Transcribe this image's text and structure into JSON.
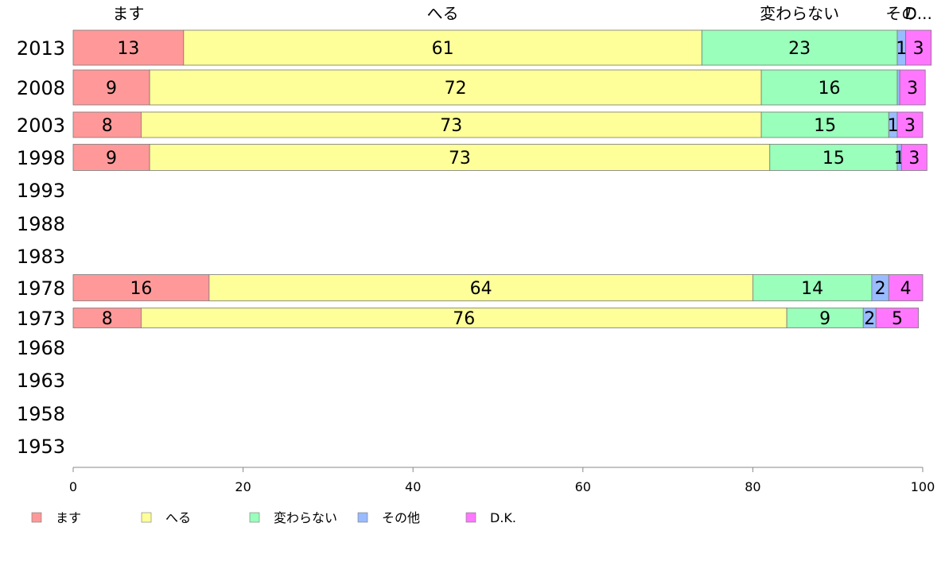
{
  "chart_data": {
    "type": "bar",
    "orientation": "horizontal",
    "stacked": true,
    "categories": [
      "2013",
      "2008",
      "2003",
      "1998",
      "1993",
      "1988",
      "1983",
      "1978",
      "1973",
      "1968",
      "1963",
      "1958",
      "1953"
    ],
    "series": [
      {
        "name": "ます",
        "color": "#ff9999",
        "values": [
          13,
          9,
          8,
          9,
          null,
          null,
          null,
          16,
          8,
          null,
          null,
          null,
          null
        ]
      },
      {
        "name": "へる",
        "color": "#ffff99",
        "values": [
          61,
          72,
          73,
          73,
          null,
          null,
          null,
          64,
          76,
          null,
          null,
          null,
          null
        ]
      },
      {
        "name": "変わらない",
        "color": "#99ffbb",
        "values": [
          23,
          16,
          15,
          15,
          null,
          null,
          null,
          14,
          9,
          null,
          null,
          null,
          null
        ]
      },
      {
        "name": "その他",
        "color": "#99bbff",
        "values": [
          1,
          0.3,
          1,
          0.5,
          null,
          null,
          null,
          2,
          1.5,
          null,
          null,
          null,
          null
        ]
      },
      {
        "name": "D.K.",
        "color": "#ff77ff",
        "values": [
          3,
          3,
          3,
          3,
          null,
          null,
          null,
          4,
          5,
          null,
          null,
          null,
          null
        ]
      }
    ],
    "value_labels": [
      [
        "13",
        "61",
        "23",
        "1",
        "3"
      ],
      [
        "9",
        "72",
        "16",
        "",
        "3"
      ],
      [
        "8",
        "73",
        "15",
        "1",
        "3"
      ],
      [
        "9",
        "73",
        "15",
        "1",
        "3"
      ],
      null,
      null,
      null,
      [
        "16",
        "64",
        "14",
        "2",
        "4"
      ],
      [
        "8",
        "76",
        "9",
        "2",
        "5"
      ],
      null,
      null,
      null,
      null
    ],
    "top_labels": [
      "ます",
      "へる",
      "変わらない",
      "その",
      "D..."
    ],
    "xlim": [
      0,
      100
    ],
    "xticks": [
      "0",
      "20",
      "40",
      "60",
      "80",
      "100"
    ],
    "legend": [
      "ます",
      "へる",
      "変わらない",
      "その他",
      "D.K."
    ],
    "legend_position": "bottom-left",
    "grid": false
  }
}
